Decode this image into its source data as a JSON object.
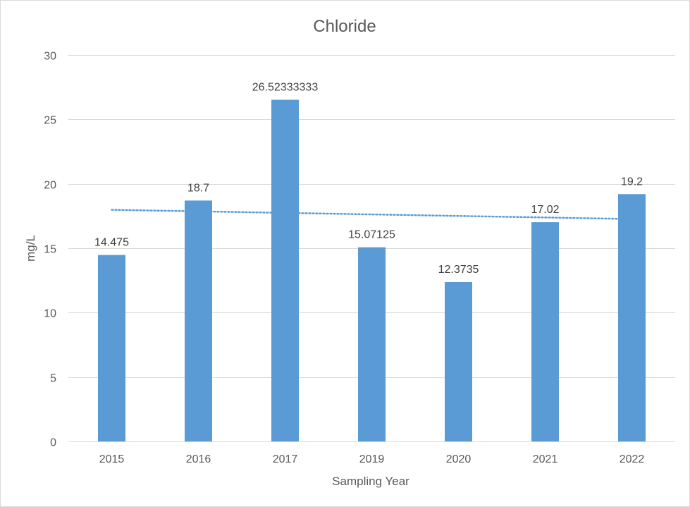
{
  "chart_data": {
    "type": "bar",
    "title": "Chloride",
    "xlabel": "Sampling Year",
    "ylabel": "mg/L",
    "categories": [
      "2015",
      "2016",
      "2017",
      "2019",
      "2020",
      "2021",
      "2022"
    ],
    "values": [
      14.475,
      18.7,
      26.52333333,
      15.07125,
      12.3735,
      17.02,
      19.2
    ],
    "data_labels": [
      "14.475",
      "18.7",
      "26.52333333",
      "15.07125",
      "12.3735",
      "17.02",
      "19.2"
    ],
    "ylim": [
      0,
      30
    ],
    "yticks": [
      0,
      5,
      10,
      15,
      20,
      25,
      30
    ],
    "grid": true,
    "legend": "none",
    "trendline": {
      "type": "linear",
      "style": "dotted"
    },
    "colors": {
      "bar": "#5B9BD5",
      "trendline": "#5B9BD5",
      "gridline": "#d9d9d9",
      "text": "#595959"
    }
  }
}
